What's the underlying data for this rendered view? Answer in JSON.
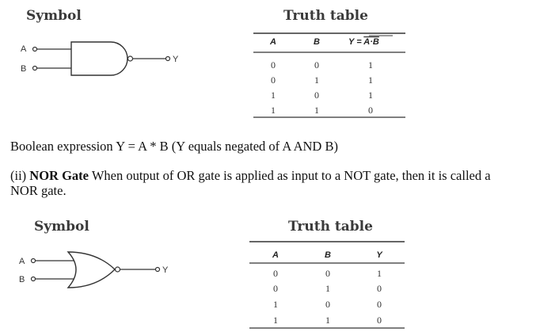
{
  "nand": {
    "symbol_heading": "Symbol",
    "table_heading": "Truth table",
    "input_a": "A",
    "input_b": "B",
    "output": "Y",
    "table": {
      "headers": [
        "A",
        "B",
        "Y = A·B"
      ],
      "output_header_main": "Y = ",
      "output_header_overlined": "A·B",
      "rows": [
        [
          "0",
          "0",
          "1"
        ],
        [
          "0",
          "1",
          "1"
        ],
        [
          "1",
          "0",
          "1"
        ],
        [
          "1",
          "1",
          "0"
        ]
      ]
    }
  },
  "boolean_expression": "Boolean expression Y = A * B (Y equals negated of A AND B)",
  "nor_paragraph": {
    "prefix": "(ii) ",
    "bold": "NOR Gate",
    "line1_rest": " When output of OR gate is applied as input to a NOT gate, then it is called a",
    "line2": "NOR gate."
  },
  "nor": {
    "symbol_heading": "Symbol",
    "table_heading": "Truth table",
    "input_a": "A",
    "input_b": "B",
    "output": "Y",
    "table": {
      "headers": [
        "A",
        "B",
        "Y"
      ],
      "rows": [
        [
          "0",
          "0",
          "1"
        ],
        [
          "0",
          "1",
          "0"
        ],
        [
          "1",
          "0",
          "0"
        ],
        [
          "1",
          "1",
          "0"
        ]
      ]
    }
  }
}
